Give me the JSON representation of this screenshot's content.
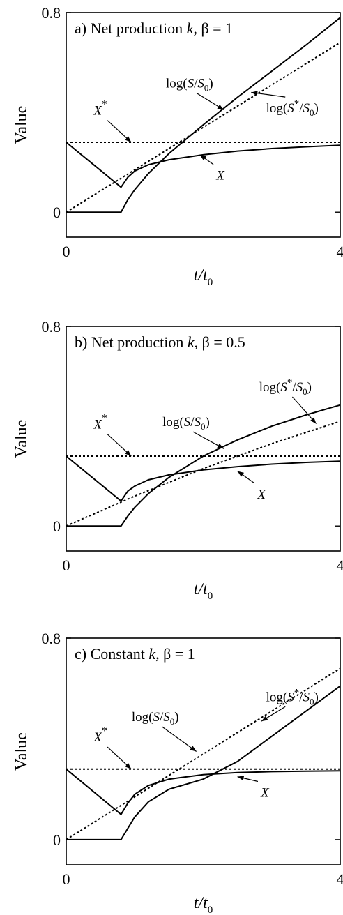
{
  "chart_data": [
    {
      "type": "line",
      "title": "a) Net production k, β = 1",
      "xlabel": "t/t0",
      "ylabel": "Value",
      "xlim": [
        0,
        4
      ],
      "ylim": [
        -0.1,
        0.8
      ],
      "x_ticks": [
        "0",
        "4"
      ],
      "y_ticks": [
        "0",
        "0.8"
      ],
      "series": [
        {
          "name": "log(S/S0)",
          "style": "solid",
          "points": [
            [
              0,
              0
            ],
            [
              0.8,
              0
            ],
            [
              0.9,
              0.05
            ],
            [
              1.0,
              0.09
            ],
            [
              1.2,
              0.155
            ],
            [
              1.5,
              0.235
            ],
            [
              2.0,
              0.35
            ],
            [
              2.5,
              0.46
            ],
            [
              3.0,
              0.565
            ],
            [
              3.5,
              0.67
            ],
            [
              4.0,
              0.78
            ]
          ]
        },
        {
          "name": "log(S*/S0)",
          "style": "dotted",
          "points": [
            [
              0,
              0
            ],
            [
              1,
              0.17
            ],
            [
              2,
              0.34
            ],
            [
              3,
              0.51
            ],
            [
              4,
              0.68
            ]
          ]
        },
        {
          "name": "X*",
          "style": "dotted",
          "points": [
            [
              0,
              0.28
            ],
            [
              4,
              0.28
            ]
          ]
        },
        {
          "name": "X",
          "style": "solid",
          "points": [
            [
              0,
              0.28
            ],
            [
              0.8,
              0.1
            ],
            [
              0.9,
              0.14
            ],
            [
              1.0,
              0.165
            ],
            [
              1.2,
              0.19
            ],
            [
              1.5,
              0.21
            ],
            [
              2.0,
              0.23
            ],
            [
              2.5,
              0.245
            ],
            [
              3.0,
              0.255
            ],
            [
              3.5,
              0.262
            ],
            [
              4.0,
              0.268
            ]
          ]
        }
      ],
      "annotations": [
        {
          "text": "log(S/S0)",
          "at": [
            1.8,
            0.5
          ],
          "arrow_to": [
            2.3,
            0.41
          ]
        },
        {
          "text": "log(S*/S0)",
          "at": [
            3.3,
            0.4
          ],
          "arrow_to": [
            2.7,
            0.48
          ]
        },
        {
          "text": "X*",
          "at": [
            0.5,
            0.39
          ],
          "arrow_to": [
            0.95,
            0.28
          ]
        },
        {
          "text": "X",
          "at": [
            2.25,
            0.13
          ],
          "arrow_to": [
            1.95,
            0.23
          ]
        }
      ]
    },
    {
      "type": "line",
      "title": "b) Net production k, β = 0.5",
      "xlabel": "t/t0",
      "ylabel": "Value",
      "xlim": [
        0,
        4
      ],
      "ylim": [
        -0.1,
        0.8
      ],
      "x_ticks": [
        "0",
        "4"
      ],
      "y_ticks": [
        "0",
        "0.8"
      ],
      "series": [
        {
          "name": "log(S/S0)",
          "style": "solid",
          "points": [
            [
              0,
              0
            ],
            [
              0.8,
              0
            ],
            [
              0.9,
              0.04
            ],
            [
              1.0,
              0.075
            ],
            [
              1.2,
              0.13
            ],
            [
              1.5,
              0.195
            ],
            [
              2.0,
              0.28
            ],
            [
              2.5,
              0.345
            ],
            [
              3.0,
              0.4
            ],
            [
              3.5,
              0.445
            ],
            [
              4.0,
              0.485
            ]
          ]
        },
        {
          "name": "log(S*/S0)",
          "style": "dotted",
          "points": [
            [
              0,
              0
            ],
            [
              0.5,
              0.06
            ],
            [
              1,
              0.12
            ],
            [
              1.5,
              0.175
            ],
            [
              2,
              0.23
            ],
            [
              2.5,
              0.28
            ],
            [
              3,
              0.33
            ],
            [
              3.5,
              0.375
            ],
            [
              4,
              0.42
            ]
          ]
        },
        {
          "name": "X*",
          "style": "dotted",
          "points": [
            [
              0,
              0.28
            ],
            [
              4,
              0.28
            ]
          ]
        },
        {
          "name": "X",
          "style": "solid",
          "points": [
            [
              0,
              0.28
            ],
            [
              0.8,
              0.1
            ],
            [
              0.9,
              0.14
            ],
            [
              1.0,
              0.16
            ],
            [
              1.2,
              0.185
            ],
            [
              1.5,
              0.205
            ],
            [
              2.0,
              0.225
            ],
            [
              2.5,
              0.238
            ],
            [
              3.0,
              0.248
            ],
            [
              3.5,
              0.255
            ],
            [
              4.0,
              0.26
            ]
          ]
        }
      ],
      "annotations": [
        {
          "text": "log(S/S0)",
          "at": [
            1.75,
            0.4
          ],
          "arrow_to": [
            2.3,
            0.31
          ]
        },
        {
          "text": "log(S*/S0)",
          "at": [
            3.2,
            0.54
          ],
          "arrow_to": [
            3.65,
            0.41
          ]
        },
        {
          "text": "X*",
          "at": [
            0.5,
            0.39
          ],
          "arrow_to": [
            0.95,
            0.28
          ]
        },
        {
          "text": "X",
          "at": [
            2.85,
            0.11
          ],
          "arrow_to": [
            2.5,
            0.22
          ]
        }
      ]
    },
    {
      "type": "line",
      "title": "c) Constant k, β = 1",
      "xlabel": "t/t0",
      "ylabel": "Value",
      "xlim": [
        0,
        4
      ],
      "ylim": [
        -0.1,
        0.8
      ],
      "x_ticks": [
        "0",
        "4"
      ],
      "y_ticks": [
        "0",
        "0.8"
      ],
      "series": [
        {
          "name": "log(S/S0)",
          "style": "solid",
          "points": [
            [
              0,
              0
            ],
            [
              0.8,
              0
            ],
            [
              0.9,
              0.045
            ],
            [
              1.0,
              0.09
            ],
            [
              1.2,
              0.15
            ],
            [
              1.5,
              0.2
            ],
            [
              2.0,
              0.24
            ],
            [
              2.5,
              0.31
            ],
            [
              3.0,
              0.41
            ],
            [
              3.5,
              0.51
            ],
            [
              4.0,
              0.61
            ]
          ]
        },
        {
          "name": "log(S*/S0)",
          "style": "dotted",
          "points": [
            [
              0,
              0
            ],
            [
              1,
              0.17
            ],
            [
              2,
              0.34
            ],
            [
              3,
              0.51
            ],
            [
              4,
              0.68
            ]
          ]
        },
        {
          "name": "X*",
          "style": "dotted",
          "points": [
            [
              0,
              0.28
            ],
            [
              4,
              0.28
            ]
          ]
        },
        {
          "name": "X",
          "style": "solid",
          "points": [
            [
              0,
              0.28
            ],
            [
              0.8,
              0.1
            ],
            [
              0.9,
              0.145
            ],
            [
              1.0,
              0.18
            ],
            [
              1.2,
              0.215
            ],
            [
              1.5,
              0.24
            ],
            [
              2.0,
              0.258
            ],
            [
              2.5,
              0.266
            ],
            [
              3.0,
              0.27
            ],
            [
              3.5,
              0.272
            ],
            [
              4.0,
              0.273
            ]
          ]
        }
      ],
      "annotations": [
        {
          "text": "log(S/S0)",
          "at": [
            1.3,
            0.47
          ],
          "arrow_to": [
            1.9,
            0.35
          ]
        },
        {
          "text": "log(S*/S0)",
          "at": [
            3.3,
            0.55
          ],
          "arrow_to": [
            2.85,
            0.47
          ]
        },
        {
          "text": "X*",
          "at": [
            0.5,
            0.39
          ],
          "arrow_to": [
            0.95,
            0.28
          ]
        },
        {
          "text": "X",
          "at": [
            2.9,
            0.17
          ],
          "arrow_to": [
            2.5,
            0.25
          ]
        }
      ]
    }
  ]
}
